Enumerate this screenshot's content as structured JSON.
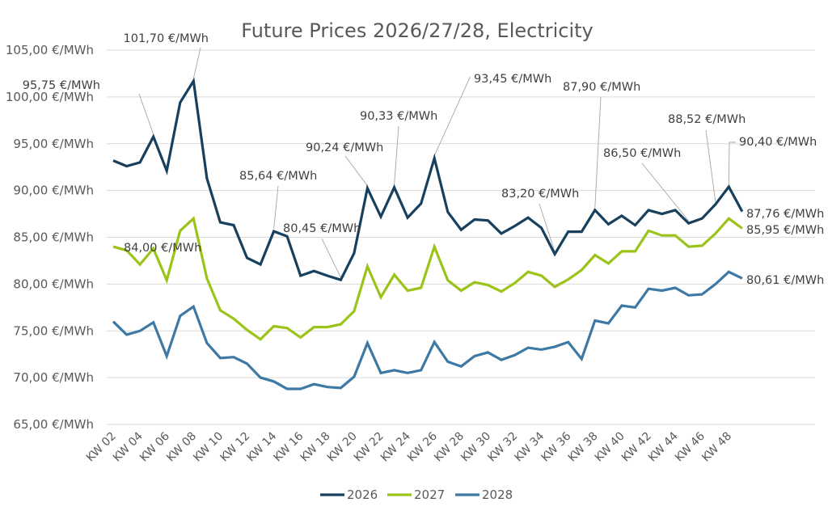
{
  "chart_data": {
    "type": "line",
    "title": "Future Prices 2026/27/28, Electricity",
    "xlabel": "",
    "ylabel": "",
    "ylim": [
      65,
      105
    ],
    "y_ticks": [
      65,
      70,
      75,
      80,
      85,
      90,
      95,
      100,
      105
    ],
    "y_tick_labels": [
      "65,00 €/MWh",
      "70,00 €/MWh",
      "75,00 €/MWh",
      "80,00 €/MWh",
      "85,00 €/MWh",
      "90,00 €/MWh",
      "95,00 €/MWh",
      "100,00 €/MWh",
      "105,00 €/MWh"
    ],
    "grid": true,
    "legend_position": "bottom",
    "categories": [
      "KW 02",
      "KW 03",
      "KW 04",
      "KW 05",
      "KW 06",
      "KW 07",
      "KW 08",
      "KW 09",
      "KW 10",
      "KW 11",
      "KW 12",
      "KW 13",
      "KW 14",
      "KW 15",
      "KW 16",
      "KW 17",
      "KW 18",
      "KW 19",
      "KW 20",
      "KW 21",
      "KW 22",
      "KW 23",
      "KW 24",
      "KW 25",
      "KW 26",
      "KW 27",
      "KW 28",
      "KW 29",
      "KW 30",
      "KW 31",
      "KW 32",
      "KW 33",
      "KW 34",
      "KW 35",
      "KW 36",
      "KW 37",
      "KW 38",
      "KW 39",
      "KW 40",
      "KW 41",
      "KW 42",
      "KW 43",
      "KW 44",
      "KW 45",
      "KW 46",
      "KW 47",
      "KW 48",
      "KW 49"
    ],
    "x_tick_labels": [
      "KW 02",
      "KW 04",
      "KW 06",
      "KW 08",
      "KW 10",
      "KW 12",
      "KW 14",
      "KW 16",
      "KW 18",
      "KW 20",
      "KW 22",
      "KW 24",
      "KW 26",
      "KW 28",
      "KW 30",
      "KW 32",
      "KW 34",
      "KW 36",
      "KW 38",
      "KW 40",
      "KW 42",
      "KW 44",
      "KW 46",
      "KW 48"
    ],
    "series": [
      {
        "name": "2026",
        "color": "#17405F",
        "values": [
          93.2,
          92.6,
          93.0,
          95.75,
          92.1,
          99.4,
          101.7,
          91.3,
          86.6,
          86.3,
          82.8,
          82.1,
          85.64,
          85.1,
          80.9,
          81.4,
          80.9,
          80.45,
          83.3,
          90.24,
          87.2,
          90.33,
          87.1,
          88.6,
          93.45,
          87.7,
          85.8,
          86.9,
          86.8,
          85.4,
          86.2,
          87.1,
          86.0,
          83.2,
          85.6,
          85.6,
          87.9,
          86.4,
          87.3,
          86.3,
          87.9,
          87.5,
          87.9,
          86.5,
          87.0,
          88.52,
          90.4,
          87.76
        ]
      },
      {
        "name": "2027",
        "color": "#9BC31A",
        "values": [
          84.0,
          83.6,
          82.1,
          83.8,
          80.4,
          85.7,
          87.0,
          80.6,
          77.2,
          76.3,
          75.1,
          74.1,
          75.5,
          75.3,
          74.3,
          75.4,
          75.4,
          75.7,
          77.1,
          81.9,
          78.6,
          81.0,
          79.3,
          79.6,
          84.0,
          80.4,
          79.3,
          80.2,
          79.9,
          79.2,
          80.1,
          81.3,
          80.9,
          79.7,
          80.5,
          81.5,
          83.1,
          82.2,
          83.5,
          83.5,
          85.7,
          85.2,
          85.2,
          84.0,
          84.1,
          85.4,
          87.0,
          85.95
        ]
      },
      {
        "name": "2028",
        "color": "#3D79A4",
        "values": [
          76.0,
          74.6,
          75.0,
          75.9,
          72.3,
          76.6,
          77.6,
          73.7,
          72.1,
          72.2,
          71.5,
          70.0,
          69.6,
          68.8,
          68.8,
          69.3,
          69.0,
          68.9,
          70.1,
          73.7,
          70.5,
          70.8,
          70.5,
          70.8,
          73.8,
          71.7,
          71.2,
          72.3,
          72.7,
          71.9,
          72.4,
          73.2,
          73.0,
          73.3,
          73.8,
          72.0,
          76.1,
          75.8,
          77.7,
          77.5,
          79.5,
          79.3,
          79.6,
          78.8,
          78.9,
          80.0,
          81.3,
          80.61
        ]
      }
    ],
    "annotations": [
      {
        "series": "2026",
        "category": "KW 05",
        "text": "95,75 €/MWh"
      },
      {
        "series": "2026",
        "category": "KW 08",
        "text": "101,70 €/MWh"
      },
      {
        "series": "2026",
        "category": "KW 14",
        "text": "85,64 €/MWh"
      },
      {
        "series": "2026",
        "category": "KW 19",
        "text": "80,45 €/MWh"
      },
      {
        "series": "2026",
        "category": "KW 21",
        "text": "90,24 €/MWh"
      },
      {
        "series": "2026",
        "category": "KW 23",
        "text": "90,33 €/MWh"
      },
      {
        "series": "2026",
        "category": "KW 26",
        "text": "93,45 €/MWh"
      },
      {
        "series": "2026",
        "category": "KW 35",
        "text": "83,20 €/MWh"
      },
      {
        "series": "2026",
        "category": "KW 38",
        "text": "87,90 €/MWh"
      },
      {
        "series": "2026",
        "category": "KW 45",
        "text": "86,50 €/MWh"
      },
      {
        "series": "2026",
        "category": "KW 47",
        "text": "88,52 €/MWh"
      },
      {
        "series": "2026",
        "category": "KW 48",
        "text": "90,40 €/MWh"
      },
      {
        "series": "2026",
        "category": "KW 49",
        "text": "87,76 €/MWh"
      },
      {
        "series": "2027",
        "category": "KW 02",
        "text": "84,00 €/MWh"
      },
      {
        "series": "2027",
        "category": "KW 49",
        "text": "85,95 €/MWh"
      },
      {
        "series": "2028",
        "category": "KW 49",
        "text": "80,61 €/MWh"
      }
    ]
  }
}
